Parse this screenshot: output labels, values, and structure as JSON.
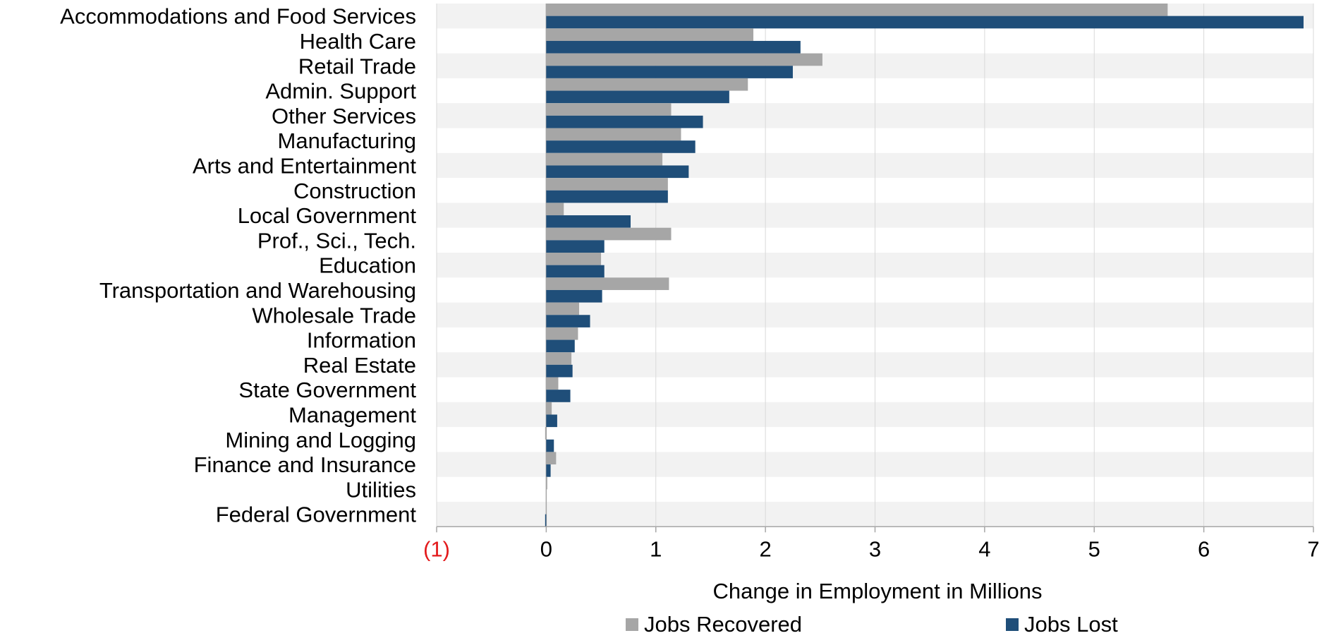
{
  "chart_data": {
    "type": "bar",
    "orientation": "horizontal",
    "title": "",
    "xlabel": "Change in Employment in Millions",
    "ylabel": "",
    "xlim": [
      -1,
      7
    ],
    "xticks": [
      -1,
      0,
      1,
      2,
      3,
      4,
      5,
      6,
      7
    ],
    "xtick_labels": [
      "(1)",
      "0",
      "1",
      "2",
      "3",
      "4",
      "5",
      "6",
      "7"
    ],
    "negative_tick_color": "#e31a1c",
    "grid": "vertical",
    "row_banding": true,
    "legend": "bottom",
    "categories": [
      "Accommodations and Food Services",
      "Health Care",
      "Retail Trade",
      "Admin. Support",
      "Other Services",
      "Manufacturing",
      "Arts and Entertainment",
      "Construction",
      "Local Government",
      "Prof., Sci., Tech.",
      "Education",
      "Transportation and Warehousing",
      "Wholesale Trade",
      "Information",
      "Real Estate",
      "State Government",
      "Management",
      "Mining and Logging",
      "Finance and Insurance",
      "Utilities",
      "Federal Government"
    ],
    "series": [
      {
        "name": "Jobs Recovered",
        "color": "#a6a6a6",
        "values": [
          5.67,
          1.89,
          2.52,
          1.84,
          1.14,
          1.23,
          1.06,
          1.11,
          0.16,
          1.14,
          0.5,
          1.12,
          0.3,
          0.29,
          0.23,
          0.11,
          0.05,
          -0.01,
          0.09,
          0.005,
          0.0
        ]
      },
      {
        "name": "Jobs Lost",
        "color": "#1f4e79",
        "values": [
          6.91,
          2.32,
          2.25,
          1.67,
          1.43,
          1.36,
          1.3,
          1.11,
          0.77,
          0.53,
          0.53,
          0.51,
          0.4,
          0.26,
          0.24,
          0.22,
          0.1,
          0.07,
          0.04,
          0.0,
          -0.01
        ]
      }
    ]
  },
  "colors": {
    "band": "#f2f2f2",
    "grid": "#d9d9d9",
    "axis": "#a6a6a6",
    "text": "#000000"
  }
}
